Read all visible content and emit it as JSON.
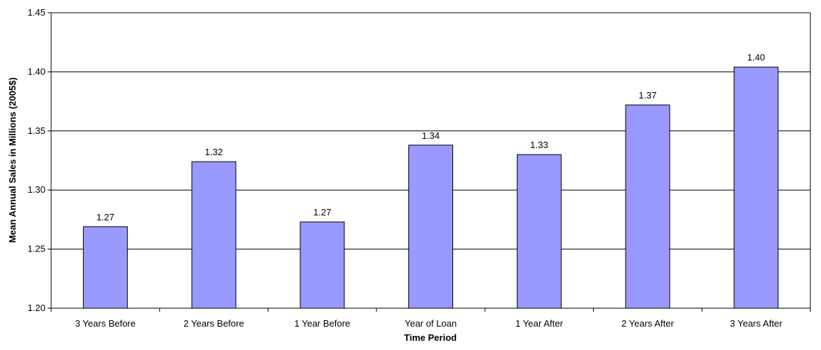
{
  "chart_data": {
    "type": "bar",
    "title": "",
    "xlabel": "Time Period",
    "ylabel": "Mean Annual Sales in Millions (2005$)",
    "categories": [
      "3 Years Before",
      "2 Years Before",
      "1 Year Before",
      "Year of Loan",
      "1 Year After",
      "2 Years After",
      "3 Years After"
    ],
    "values": [
      1.269,
      1.324,
      1.273,
      1.338,
      1.33,
      1.372,
      1.404
    ],
    "data_labels": [
      "1.27",
      "1.32",
      "1.27",
      "1.34",
      "1.33",
      "1.37",
      "1.40"
    ],
    "ylim": [
      1.2,
      1.45
    ],
    "yticks": [
      "1.20",
      "1.25",
      "1.30",
      "1.35",
      "1.40",
      "1.45"
    ],
    "grid": true,
    "legend": "none",
    "colors": {
      "bar_fill": "#9999ff",
      "bar_stroke": "#000000",
      "grid": "#000000",
      "axis": "#000000"
    }
  }
}
